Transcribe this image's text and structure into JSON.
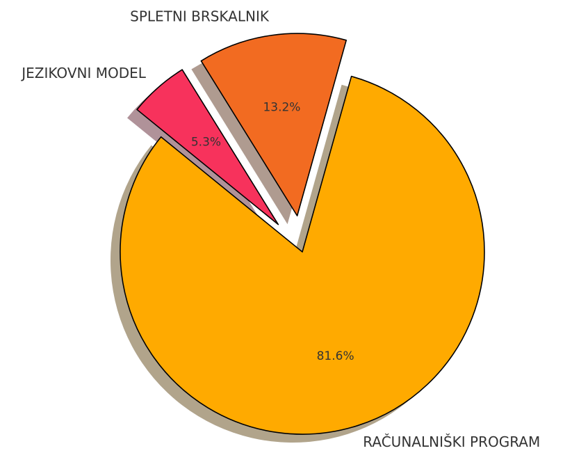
{
  "chart_data": {
    "type": "pie",
    "categories": [
      "RAČUNALNIŠKI PROGRAM",
      "SPLETNI BRSKALNIK",
      "JEZIKOVNI MODEL"
    ],
    "values": [
      81.6,
      13.2,
      5.3
    ],
    "value_labels": [
      "81.6%",
      "13.2%",
      "5.3%"
    ],
    "colors": [
      "#ffaa00",
      "#f26b21",
      "#f7325c"
    ],
    "shadow": true
  }
}
